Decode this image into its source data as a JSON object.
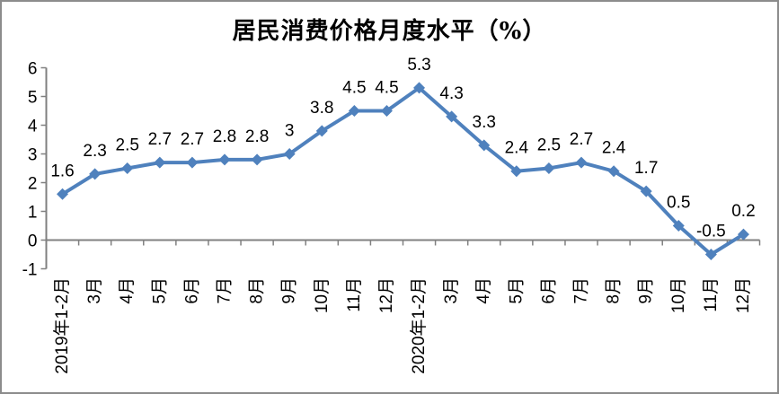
{
  "chart_data": {
    "type": "line",
    "title": "居民消费价格月度水平（%）",
    "categories": [
      "2019年1-2月",
      "3月",
      "4月",
      "5月",
      "6月",
      "7月",
      "8月",
      "9月",
      "10月",
      "11月",
      "12月",
      "2020年1-2月",
      "3月",
      "4月",
      "5月",
      "6月",
      "7月",
      "8月",
      "9月",
      "10月",
      "11月",
      "12月"
    ],
    "values": [
      1.6,
      2.3,
      2.5,
      2.7,
      2.7,
      2.8,
      2.8,
      3,
      3.8,
      4.5,
      4.5,
      5.3,
      4.3,
      3.3,
      2.4,
      2.5,
      2.7,
      2.4,
      1.7,
      0.5,
      -0.5,
      0.2
    ],
    "point_labels": [
      "1.6",
      "2.3",
      "2.5",
      "2.7",
      "2.7",
      "2.8",
      "2.8",
      "3",
      "3.8",
      "4.5",
      "4.5",
      "5.3",
      "4.3",
      "3.3",
      "2.4",
      "2.5",
      "2.7",
      "2.4",
      "1.7",
      "0.5",
      "-0.5",
      "0.2"
    ],
    "ylim": [
      -1,
      6
    ],
    "y_tick_step": 1,
    "grid": false,
    "legend": "none",
    "marker": "diamond",
    "colors": {
      "series": "#4F81BD",
      "axis": "#808080",
      "text": "#000000",
      "frame_border": "#8C8C8C",
      "background": "#FFFFFF"
    }
  }
}
